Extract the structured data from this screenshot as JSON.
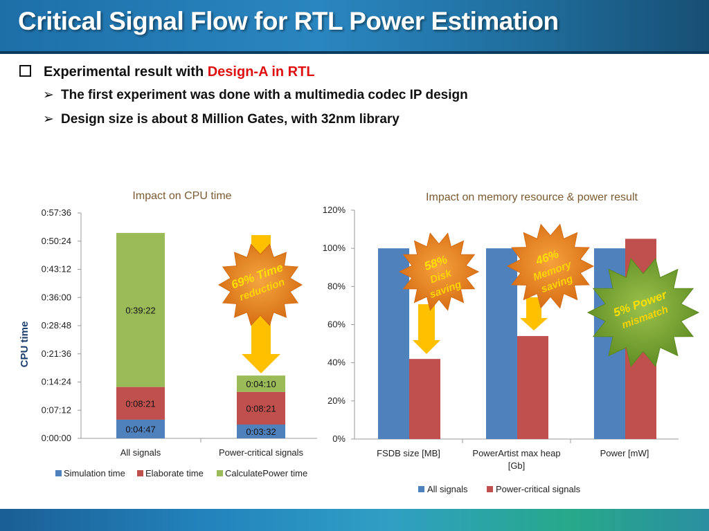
{
  "slide": {
    "title": "Critical Signal Flow for RTL Power Estimation",
    "bullet_main_prefix": "Experimental result with ",
    "bullet_main_highlight": "Design-A in RTL",
    "sub_bullets": [
      "The first experiment was done with a multimedia codec IP design",
      "Design size is about 8 Million Gates, with 32nm library"
    ]
  },
  "callouts": {
    "left": {
      "pct": "69%",
      "line1": "Time",
      "line2": "reduction"
    },
    "disk": {
      "pct": "58%",
      "line1": "Disk",
      "line2": "saving"
    },
    "memory": {
      "pct": "46%",
      "line1": "Memory",
      "line2": "saving"
    },
    "power": {
      "pct": "5%",
      "line1": "Power",
      "line2": "mismatch"
    }
  },
  "colors": {
    "blue": "#4f81bd",
    "red": "#c0504d",
    "green": "#9bbb59",
    "orange": "#f5a020",
    "arrow": "#ffc000"
  },
  "chart_data": [
    {
      "type": "bar",
      "stacked": true,
      "title": "Impact on CPU time",
      "ylabel": "CPU time",
      "ylim_seconds": [
        0,
        3456
      ],
      "yticks": [
        "0:00:00",
        "0:07:12",
        "0:14:24",
        "0:21:36",
        "0:28:48",
        "0:36:00",
        "0:43:12",
        "0:50:24",
        "0:57:36"
      ],
      "categories": [
        "All signals",
        "Power-critical signals"
      ],
      "series": [
        {
          "name": "Simulation time",
          "labels": [
            "0:04:47",
            "0:03:32"
          ],
          "seconds": [
            287,
            212
          ]
        },
        {
          "name": "Elaborate time",
          "labels": [
            "0:08:21",
            "0:08:21"
          ],
          "seconds": [
            501,
            501
          ]
        },
        {
          "name": "CalculatePower time",
          "labels": [
            "0:39:22",
            "0:04:10"
          ],
          "seconds": [
            2362,
            250
          ]
        }
      ],
      "legend": "bottom"
    },
    {
      "type": "bar",
      "title": "Impact on memory resource & power result",
      "ylim": [
        0,
        120
      ],
      "yticks": [
        "0%",
        "20%",
        "40%",
        "60%",
        "80%",
        "100%",
        "120%"
      ],
      "categories": [
        "FSDB size [MB]",
        "PowerArtist max heap [Gb]",
        "Power [mW]"
      ],
      "categories_lines": [
        [
          "FSDB size [MB]"
        ],
        [
          "PowerArtist max heap",
          "[Gb]"
        ],
        [
          "Power [mW]"
        ]
      ],
      "series": [
        {
          "name": "All signals",
          "values": [
            100,
            100,
            100
          ]
        },
        {
          "name": "Power-critical signals",
          "values": [
            42,
            54,
            105
          ]
        }
      ],
      "legend": "bottom"
    }
  ]
}
